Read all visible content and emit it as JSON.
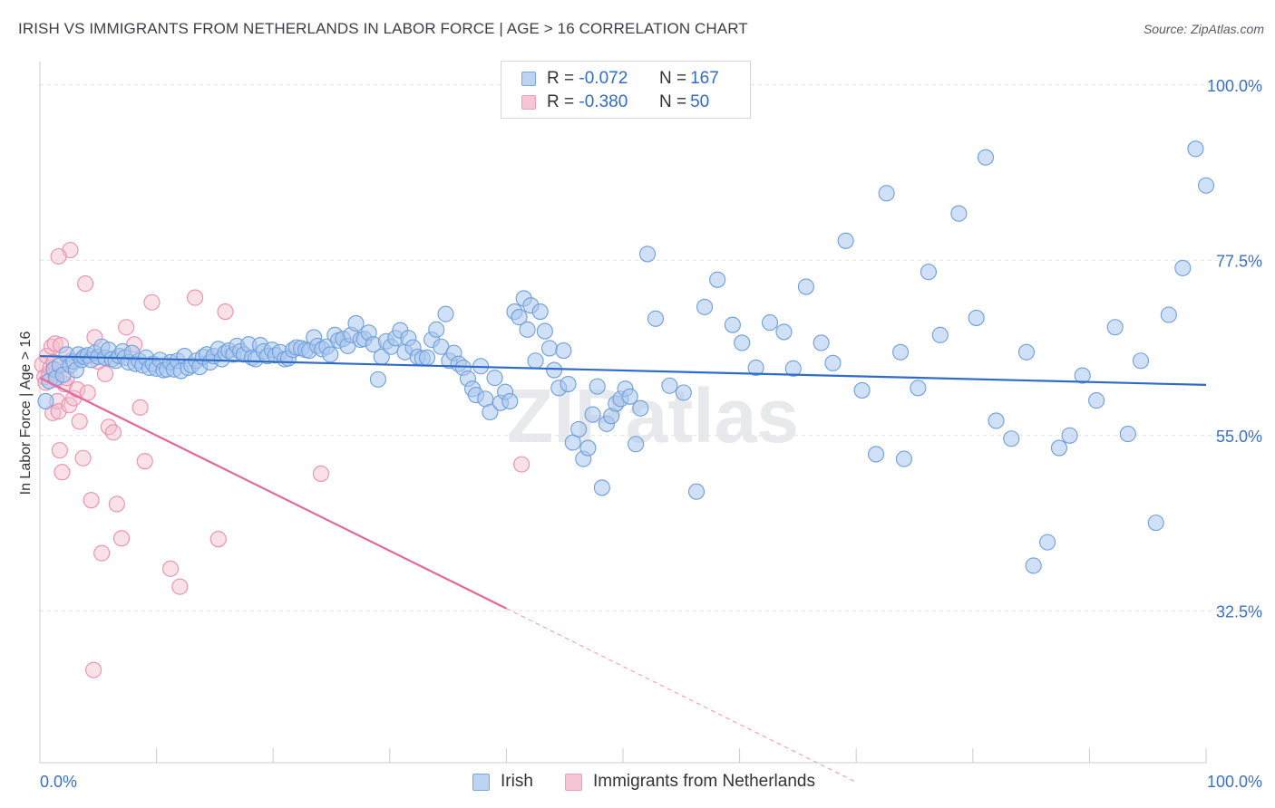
{
  "title": "IRISH VS IMMIGRANTS FROM NETHERLANDS IN LABOR FORCE | AGE > 16 CORRELATION CHART",
  "source": "Source: ZipAtlas.com",
  "watermark": "ZIPatlas",
  "legend_top": {
    "rows": [
      {
        "r_label": "R =",
        "r_value": "-0.072",
        "n_label": "N =",
        "n_value": "167"
      },
      {
        "r_label": "R =",
        "r_value": "-0.380",
        "n_label": "N =",
        "n_value": "50"
      }
    ]
  },
  "legend_bottom": {
    "items": [
      {
        "label": "Irish"
      },
      {
        "label": "Immigrants from Netherlands"
      }
    ]
  },
  "colors": {
    "irish_fill": "#a9c7ee",
    "irish_stroke": "#6f9fdb",
    "irish_line": "#2f6cc9",
    "nl_fill": "#f5bccd",
    "nl_stroke": "#ec8fae",
    "nl_line": "#e5679a",
    "tick_label": "#3b70c8",
    "grid": "#dfe2e7"
  },
  "chart_data": {
    "type": "scatter",
    "title": "IRISH VS IMMIGRANTS FROM NETHERLANDS IN LABOR FORCE | AGE > 16 CORRELATION CHART",
    "xlabel": "",
    "ylabel": "In Labor Force | Age > 16",
    "xlim": [
      0,
      100
    ],
    "ylim": [
      13,
      103
    ],
    "x_tick_labels": [
      "0.0%",
      "100.0%"
    ],
    "y_ticks": [
      32.5,
      55.0,
      77.5,
      100.0
    ],
    "y_tick_labels": [
      "32.5%",
      "55.0%",
      "77.5%",
      "100.0%"
    ],
    "grid": "horizontal dashed",
    "legend_position": "top-center",
    "series": [
      {
        "name": "Irish",
        "r": -0.072,
        "n": 167,
        "trend": {
          "x": [
            0,
            100
          ],
          "y": [
            65.2,
            61.5
          ]
        },
        "points": [
          [
            0.5,
            59.4
          ],
          [
            0.8,
            62.0
          ],
          [
            1.2,
            63.5
          ],
          [
            1.4,
            62.4
          ],
          [
            1.7,
            64.0
          ],
          [
            2.0,
            62.8
          ],
          [
            2.3,
            65.4
          ],
          [
            2.6,
            64.0
          ],
          [
            2.9,
            64.5
          ],
          [
            3.1,
            63.4
          ],
          [
            3.3,
            65.4
          ],
          [
            3.6,
            64.7
          ],
          [
            3.8,
            65.1
          ],
          [
            4.1,
            65.3
          ],
          [
            4.4,
            64.7
          ],
          [
            4.7,
            65.6
          ],
          [
            5.0,
            65.1
          ],
          [
            5.3,
            66.4
          ],
          [
            5.6,
            65.0
          ],
          [
            5.9,
            66.0
          ],
          [
            6.2,
            64.8
          ],
          [
            6.5,
            64.6
          ],
          [
            6.8,
            65.2
          ],
          [
            7.1,
            65.8
          ],
          [
            7.3,
            65.0
          ],
          [
            7.6,
            64.4
          ],
          [
            7.9,
            65.6
          ],
          [
            8.2,
            64.2
          ],
          [
            8.5,
            64.6
          ],
          [
            8.8,
            64.0
          ],
          [
            9.1,
            65.0
          ],
          [
            9.4,
            63.7
          ],
          [
            9.7,
            64.2
          ],
          [
            10.0,
            63.6
          ],
          [
            10.3,
            64.7
          ],
          [
            10.6,
            63.4
          ],
          [
            10.9,
            63.5
          ],
          [
            11.2,
            64.4
          ],
          [
            11.5,
            63.5
          ],
          [
            11.8,
            64.6
          ],
          [
            12.1,
            63.3
          ],
          [
            12.4,
            65.2
          ],
          [
            12.7,
            63.7
          ],
          [
            13.0,
            64.0
          ],
          [
            13.4,
            64.6
          ],
          [
            13.7,
            63.8
          ],
          [
            14.0,
            65.1
          ],
          [
            14.3,
            65.4
          ],
          [
            14.6,
            64.4
          ],
          [
            14.9,
            65.2
          ],
          [
            15.3,
            66.1
          ],
          [
            15.6,
            64.8
          ],
          [
            15.9,
            65.6
          ],
          [
            16.2,
            65.9
          ],
          [
            16.6,
            65.4
          ],
          [
            16.9,
            66.5
          ],
          [
            17.2,
            65.8
          ],
          [
            17.5,
            65.4
          ],
          [
            17.9,
            66.7
          ],
          [
            18.2,
            65.0
          ],
          [
            18.5,
            64.8
          ],
          [
            18.9,
            66.6
          ],
          [
            19.2,
            65.8
          ],
          [
            19.5,
            65.2
          ],
          [
            19.9,
            66.0
          ],
          [
            20.2,
            65.3
          ],
          [
            20.6,
            65.7
          ],
          [
            21.0,
            64.8
          ],
          [
            21.3,
            64.9
          ],
          [
            21.7,
            66.0
          ],
          [
            22.0,
            66.3
          ],
          [
            22.4,
            66.2
          ],
          [
            22.8,
            66.0
          ],
          [
            23.1,
            65.9
          ],
          [
            23.5,
            67.6
          ],
          [
            23.8,
            66.5
          ],
          [
            24.2,
            66.1
          ],
          [
            24.6,
            66.4
          ],
          [
            24.9,
            65.4
          ],
          [
            25.3,
            67.9
          ],
          [
            25.6,
            67.2
          ],
          [
            26.0,
            67.4
          ],
          [
            26.4,
            66.5
          ],
          [
            26.7,
            67.9
          ],
          [
            27.1,
            69.4
          ],
          [
            27.5,
            67.3
          ],
          [
            27.8,
            67.4
          ],
          [
            28.2,
            68.2
          ],
          [
            28.6,
            66.7
          ],
          [
            29.0,
            62.2
          ],
          [
            29.3,
            65.1
          ],
          [
            29.7,
            67.1
          ],
          [
            30.1,
            66.4
          ],
          [
            30.5,
            67.5
          ],
          [
            30.9,
            68.5
          ],
          [
            31.3,
            65.7
          ],
          [
            31.6,
            67.5
          ],
          [
            32.0,
            66.3
          ],
          [
            32.4,
            65.1
          ],
          [
            32.8,
            64.9
          ],
          [
            33.2,
            65.0
          ],
          [
            33.6,
            67.3
          ],
          [
            34.0,
            68.6
          ],
          [
            34.4,
            66.4
          ],
          [
            34.8,
            70.6
          ],
          [
            35.1,
            64.6
          ],
          [
            35.5,
            65.6
          ],
          [
            35.9,
            64.2
          ],
          [
            36.3,
            63.7
          ],
          [
            36.7,
            62.3
          ],
          [
            37.1,
            61.0
          ],
          [
            37.4,
            60.2
          ],
          [
            37.8,
            63.9
          ],
          [
            38.2,
            59.7
          ],
          [
            38.6,
            58.0
          ],
          [
            39.0,
            62.4
          ],
          [
            39.5,
            59.2
          ],
          [
            39.9,
            60.6
          ],
          [
            40.3,
            59.4
          ],
          [
            40.7,
            70.9
          ],
          [
            41.1,
            70.2
          ],
          [
            41.5,
            72.6
          ],
          [
            41.8,
            68.6
          ],
          [
            42.1,
            71.7
          ],
          [
            42.5,
            64.6
          ],
          [
            42.9,
            70.9
          ],
          [
            43.3,
            68.4
          ],
          [
            43.7,
            66.2
          ],
          [
            44.1,
            63.4
          ],
          [
            44.5,
            61.1
          ],
          [
            44.9,
            65.9
          ],
          [
            45.3,
            61.6
          ],
          [
            45.7,
            54.1
          ],
          [
            46.2,
            55.8
          ],
          [
            46.6,
            52.0
          ],
          [
            47.0,
            53.4
          ],
          [
            47.4,
            57.7
          ],
          [
            47.8,
            61.3
          ],
          [
            48.2,
            48.3
          ],
          [
            48.6,
            56.5
          ],
          [
            49.0,
            57.5
          ],
          [
            49.4,
            59.1
          ],
          [
            49.8,
            59.7
          ],
          [
            50.2,
            61.0
          ],
          [
            50.6,
            60.0
          ],
          [
            51.1,
            53.9
          ],
          [
            51.5,
            58.5
          ],
          [
            52.1,
            78.3
          ],
          [
            52.8,
            70.0
          ],
          [
            54.0,
            61.4
          ],
          [
            55.2,
            60.5
          ],
          [
            56.3,
            47.8
          ],
          [
            57.0,
            71.5
          ],
          [
            58.1,
            75.0
          ],
          [
            59.4,
            69.2
          ],
          [
            60.2,
            66.9
          ],
          [
            61.4,
            63.7
          ],
          [
            62.6,
            69.5
          ],
          [
            63.8,
            68.3
          ],
          [
            64.6,
            63.6
          ],
          [
            65.7,
            74.1
          ],
          [
            67.0,
            66.9
          ],
          [
            68.0,
            64.3
          ],
          [
            69.1,
            80.0
          ],
          [
            70.5,
            60.8
          ],
          [
            71.7,
            52.6
          ],
          [
            72.6,
            86.1
          ],
          [
            73.8,
            65.7
          ],
          [
            74.1,
            52.0
          ],
          [
            75.3,
            61.1
          ],
          [
            76.2,
            76.0
          ],
          [
            77.2,
            67.9
          ],
          [
            78.8,
            83.5
          ],
          [
            80.3,
            70.1
          ],
          [
            81.1,
            90.7
          ],
          [
            82.0,
            56.9
          ],
          [
            83.3,
            54.6
          ],
          [
            84.6,
            65.7
          ],
          [
            85.2,
            38.3
          ],
          [
            86.4,
            41.3
          ],
          [
            87.4,
            53.4
          ],
          [
            88.3,
            55.0
          ],
          [
            89.4,
            62.7
          ],
          [
            90.6,
            59.5
          ],
          [
            92.2,
            68.9
          ],
          [
            93.3,
            55.2
          ],
          [
            94.4,
            64.6
          ],
          [
            95.7,
            43.8
          ],
          [
            96.8,
            70.5
          ],
          [
            98.0,
            76.5
          ],
          [
            99.1,
            91.8
          ],
          [
            100.0,
            87.1
          ]
        ]
      },
      {
        "name": "Immigrants from Netherlands",
        "r": -0.38,
        "n": 50,
        "trend": {
          "x": [
            0,
            40
          ],
          "y": [
            62.4,
            32.8
          ]
        },
        "trend_dashed": {
          "x": [
            40,
            70
          ],
          "y": [
            32.8,
            10.5
          ]
        },
        "points": [
          [
            0.2,
            64.1
          ],
          [
            0.4,
            62.5
          ],
          [
            0.5,
            61.8
          ],
          [
            0.6,
            65.2
          ],
          [
            0.8,
            63.0
          ],
          [
            0.9,
            63.7
          ],
          [
            1.0,
            66.4
          ],
          [
            1.1,
            57.9
          ],
          [
            1.2,
            64.4
          ],
          [
            1.3,
            66.8
          ],
          [
            1.4,
            62.2
          ],
          [
            1.5,
            59.4
          ],
          [
            1.6,
            58.1
          ],
          [
            1.7,
            53.1
          ],
          [
            1.8,
            66.6
          ],
          [
            1.9,
            50.3
          ],
          [
            2.1,
            61.6
          ],
          [
            2.3,
            62.4
          ],
          [
            2.5,
            58.9
          ],
          [
            2.7,
            64.6
          ],
          [
            2.9,
            59.8
          ],
          [
            3.2,
            60.9
          ],
          [
            3.4,
            56.8
          ],
          [
            3.7,
            52.1
          ],
          [
            3.9,
            74.5
          ],
          [
            4.1,
            60.5
          ],
          [
            4.4,
            46.7
          ],
          [
            4.7,
            67.6
          ],
          [
            5.0,
            64.5
          ],
          [
            5.3,
            39.9
          ],
          [
            5.6,
            62.9
          ],
          [
            5.9,
            56.1
          ],
          [
            6.3,
            55.4
          ],
          [
            6.6,
            46.2
          ],
          [
            7.0,
            41.8
          ],
          [
            7.4,
            68.9
          ],
          [
            8.1,
            66.7
          ],
          [
            8.6,
            58.6
          ],
          [
            9.0,
            51.7
          ],
          [
            9.6,
            72.1
          ],
          [
            11.2,
            37.9
          ],
          [
            12.0,
            35.6
          ],
          [
            13.3,
            72.7
          ],
          [
            15.9,
            70.9
          ],
          [
            24.1,
            50.1
          ],
          [
            41.3,
            51.3
          ],
          [
            4.6,
            24.9
          ],
          [
            2.6,
            78.8
          ],
          [
            1.6,
            78.0
          ],
          [
            15.3,
            41.7
          ]
        ]
      }
    ]
  }
}
